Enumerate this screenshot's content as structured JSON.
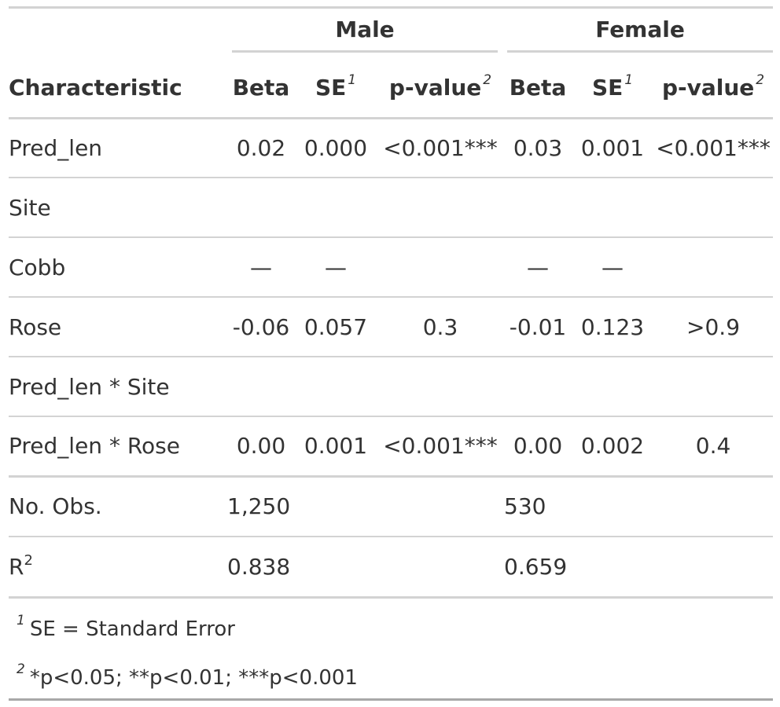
{
  "header": {
    "spanners": [
      "Male",
      "Female"
    ],
    "char_label": "Characteristic",
    "beta_label": "Beta",
    "se_label": "SE",
    "pvalue_label": "p-value",
    "se_fn_mark": "1",
    "p_fn_mark": "2"
  },
  "rows": [
    {
      "label": "Pred_len",
      "m_beta": "0.02",
      "m_se": "0.000",
      "m_p": "<0.001***",
      "f_beta": "0.03",
      "f_se": "0.001",
      "f_p": "<0.001***"
    },
    {
      "label": "Site",
      "m_beta": "",
      "m_se": "",
      "m_p": "",
      "f_beta": "",
      "f_se": "",
      "f_p": ""
    },
    {
      "label": "Cobb",
      "m_beta": "—",
      "m_se": "—",
      "m_p": "",
      "f_beta": "—",
      "f_se": "—",
      "f_p": ""
    },
    {
      "label": "Rose",
      "m_beta": "-0.06",
      "m_se": "0.057",
      "m_p": "0.3",
      "f_beta": "-0.01",
      "f_se": "0.123",
      "f_p": ">0.9"
    },
    {
      "label": "Pred_len * Site",
      "m_beta": "",
      "m_se": "",
      "m_p": "",
      "f_beta": "",
      "f_se": "",
      "f_p": ""
    },
    {
      "label": "Pred_len * Rose",
      "m_beta": "0.00",
      "m_se": "0.001",
      "m_p": "<0.001***",
      "f_beta": "0.00",
      "f_se": "0.002",
      "f_p": "0.4"
    }
  ],
  "glance": [
    {
      "label": "No. Obs.",
      "m_value": "1,250",
      "f_value": "530"
    },
    {
      "label": "R",
      "label_sup": "2",
      "m_value": "0.838",
      "f_value": "0.659"
    }
  ],
  "footnotes": [
    {
      "mark": "1",
      "text": "SE = Standard Error"
    },
    {
      "mark": "2",
      "text": "*p<0.05; **p<0.01; ***p<0.001"
    }
  ]
}
